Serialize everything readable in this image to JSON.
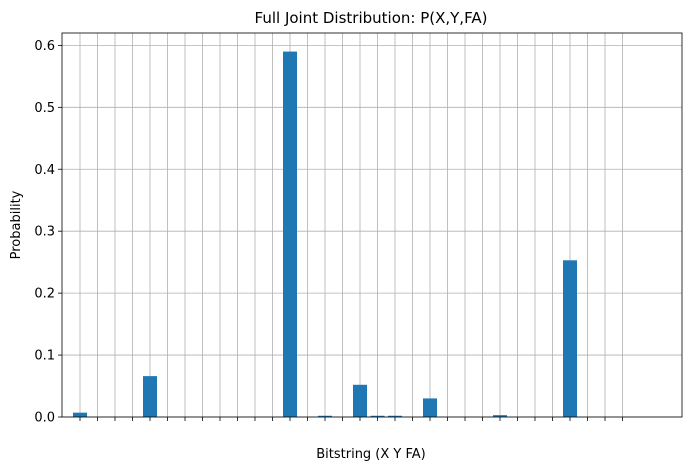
{
  "chart_data": {
    "type": "bar",
    "title": "Full Joint Distribution: P(X,Y,FA)",
    "xlabel": "Bitstring (X Y FA)",
    "ylabel": "Probability",
    "ylim": [
      0,
      0.62
    ],
    "yticks": [
      0.0,
      0.1,
      0.2,
      0.3,
      0.4,
      0.5,
      0.6
    ],
    "ytick_labels": [
      "0.0",
      "0.1",
      "0.2",
      "0.3",
      "0.4",
      "0.5",
      "0.6"
    ],
    "grid": true,
    "bar_color": "#1f77b4",
    "values": [
      0.007,
      0,
      0,
      0,
      0.066,
      0,
      0,
      0,
      0,
      0,
      0,
      0,
      0.59,
      0,
      0.002,
      0,
      0.052,
      0.002,
      0.002,
      0,
      0.03,
      0,
      0,
      0,
      0.003,
      0,
      0,
      0,
      0.253,
      0,
      0,
      0
    ]
  }
}
